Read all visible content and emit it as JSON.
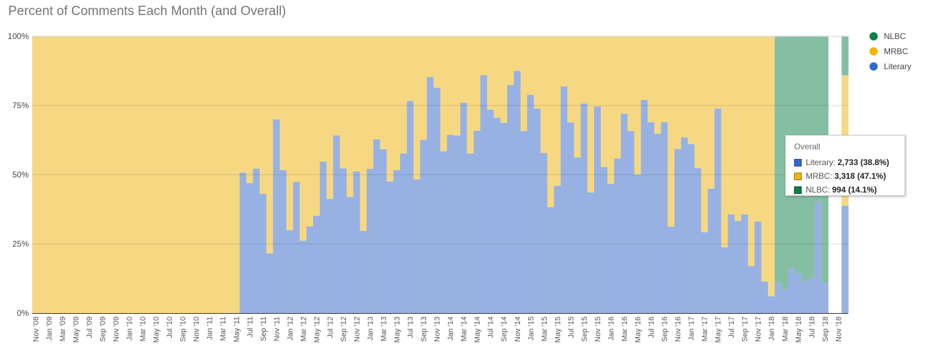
{
  "chart_data": {
    "type": "area",
    "stacked": "percent",
    "step": true,
    "title": "Percent of Comments Each Month (and Overall)",
    "xlabel": "",
    "ylabel": "",
    "ylim": [
      0,
      100
    ],
    "y_ticks": [
      "0%",
      "25%",
      "50%",
      "75%",
      "100%"
    ],
    "y_tick_values": [
      0,
      25,
      50,
      75,
      100
    ],
    "grid": true,
    "legend_position": "right",
    "x_ticks": [
      "Nov '08",
      "Jan '09",
      "Mar '09",
      "May '09",
      "Jul '09",
      "Sep '09",
      "Nov '09",
      "Jan '10",
      "Mar '10",
      "May '10",
      "Jul '10",
      "Sep '10",
      "Nov '10",
      "Jan '11",
      "Mar '11",
      "May '11",
      "Jul '11",
      "Sep '11",
      "Nov '11",
      "Jan '12",
      "Mar '12",
      "May '12",
      "Jul '12",
      "Sep '12",
      "Nov '12",
      "Jan '13",
      "Mar '13",
      "May '13",
      "Jul '13",
      "Sep '13",
      "Nov '13",
      "Jan '14",
      "Mar '14",
      "May '14",
      "Jul '14",
      "Sep '14",
      "Nov '14",
      "Jan '15",
      "Mar '15",
      "May '15",
      "Jul '15",
      "Sep '15",
      "Nov '15",
      "Jan '16",
      "Mar '16",
      "May '16",
      "Jul '16",
      "Sep '16",
      "Nov '16",
      "Jan '17",
      "Mar '17",
      "May '17",
      "Jul '17",
      "Sep '17",
      "Nov '17",
      "Jan '18",
      "Mar '18",
      "May '18",
      "Jul '18",
      "Sep '18",
      "Nov '18"
    ],
    "x_range": "monthly, Nov 2008 - Nov 2018, followed by an Overall column",
    "series": [
      {
        "name": "Literary",
        "color": "#3367d6",
        "fill": "#97b1e3",
        "values": [
          0,
          0,
          0,
          0,
          0,
          0,
          0,
          0,
          0,
          0,
          0,
          0,
          0,
          0,
          0,
          0,
          0,
          0,
          0,
          0,
          0,
          0,
          0,
          0,
          0,
          0,
          0,
          0,
          0,
          0,
          0,
          50.8,
          47.0,
          52.2,
          43.1,
          21.6,
          70.0,
          51.7,
          30.0,
          47.4,
          26.2,
          31.4,
          35.2,
          54.7,
          41.3,
          64.2,
          52.3,
          42.0,
          51.2,
          29.7,
          52.1,
          62.8,
          59.2,
          47.6,
          51.7,
          57.7,
          76.7,
          48.3,
          62.6,
          85.3,
          81.4,
          58.5,
          64.4,
          64.2,
          76.0,
          57.7,
          65.9,
          86.0,
          73.5,
          70.6,
          68.7,
          82.4,
          87.5,
          65.8,
          78.9,
          73.9,
          57.8,
          38.3,
          46.0,
          81.9,
          68.9,
          56.2,
          75.7,
          43.6,
          74.7,
          52.8,
          46.7,
          55.9,
          72.1,
          65.8,
          50.1,
          77.0,
          69.0,
          64.8,
          69.0,
          31.2,
          59.3,
          63.5,
          61.1,
          52.4,
          29.2,
          45.0,
          73.9,
          23.8,
          35.7,
          33.3,
          35.7,
          17.0,
          33.1,
          11.4,
          6.1,
          10.8,
          8.6,
          16.3,
          14.5,
          11.5,
          12.7,
          40.3,
          10.8,
          null,
          null
        ],
        "overall": 38.8
      },
      {
        "name": "MRBC",
        "color": "#f4b400",
        "fill": "#f7d882",
        "values": [
          100,
          100,
          100,
          100,
          100,
          100,
          100,
          100,
          100,
          100,
          100,
          100,
          100,
          100,
          100,
          100,
          100,
          100,
          100,
          100,
          100,
          100,
          100,
          100,
          100,
          100,
          100,
          100,
          100,
          100,
          100,
          49.2,
          53.0,
          47.8,
          56.9,
          78.4,
          30.0,
          48.3,
          70.0,
          52.6,
          73.8,
          68.6,
          64.8,
          45.3,
          58.7,
          35.8,
          47.7,
          58.0,
          48.8,
          70.3,
          47.9,
          37.2,
          40.8,
          52.4,
          48.3,
          42.3,
          23.3,
          51.7,
          37.4,
          14.7,
          18.6,
          41.5,
          35.6,
          35.8,
          24.0,
          42.3,
          34.1,
          14.0,
          26.5,
          29.4,
          31.3,
          17.6,
          12.5,
          34.2,
          21.1,
          26.1,
          42.2,
          61.7,
          54.0,
          18.1,
          31.1,
          43.8,
          24.3,
          56.4,
          25.3,
          47.2,
          53.3,
          44.1,
          27.9,
          34.2,
          49.9,
          23.0,
          31.0,
          35.2,
          31.0,
          68.8,
          40.7,
          36.5,
          38.9,
          47.6,
          70.8,
          55.0,
          26.1,
          76.2,
          64.3,
          66.7,
          64.3,
          83.0,
          66.9,
          88.6,
          93.9,
          0,
          0,
          0,
          0,
          0,
          0,
          0,
          0,
          null,
          null
        ],
        "overall": 47.1
      },
      {
        "name": "NLBC",
        "color": "#0b8043",
        "fill": "#85bfa3",
        "values": [
          0,
          0,
          0,
          0,
          0,
          0,
          0,
          0,
          0,
          0,
          0,
          0,
          0,
          0,
          0,
          0,
          0,
          0,
          0,
          0,
          0,
          0,
          0,
          0,
          0,
          0,
          0,
          0,
          0,
          0,
          0,
          0,
          0,
          0,
          0,
          0,
          0,
          0,
          0,
          0,
          0,
          0,
          0,
          0,
          0,
          0,
          0,
          0,
          0,
          0,
          0,
          0,
          0,
          0,
          0,
          0,
          0,
          0,
          0,
          0,
          0,
          0,
          0,
          0,
          0,
          0,
          0,
          0,
          0,
          0,
          0,
          0,
          0,
          0,
          0,
          0,
          0,
          0,
          0,
          0,
          0,
          0,
          0,
          0,
          0,
          0,
          0,
          0,
          0,
          0,
          0,
          0,
          0,
          0,
          0,
          0,
          0,
          0,
          0,
          0,
          0,
          0,
          0,
          0,
          0,
          0,
          0,
          0,
          0,
          0,
          0,
          89.2,
          91.4,
          83.7,
          85.5,
          88.5,
          87.3,
          59.7,
          89.2,
          null,
          null
        ],
        "overall": 14.1
      }
    ],
    "legend": [
      {
        "label": "NLBC",
        "color": "#0b8043"
      },
      {
        "label": "MRBC",
        "color": "#f4b400"
      },
      {
        "label": "Literary",
        "color": "#3367d6"
      }
    ],
    "tooltip": {
      "title": "Overall",
      "rows": [
        {
          "label": "Literary",
          "value": "2,733 (38.8%)",
          "color": "#3367d6"
        },
        {
          "label": "MRBC",
          "value": "3,318 (47.1%)",
          "color": "#f4b400"
        },
        {
          "label": "NLBC",
          "value": "994 (14.1%)",
          "color": "#0b8043"
        }
      ]
    }
  }
}
